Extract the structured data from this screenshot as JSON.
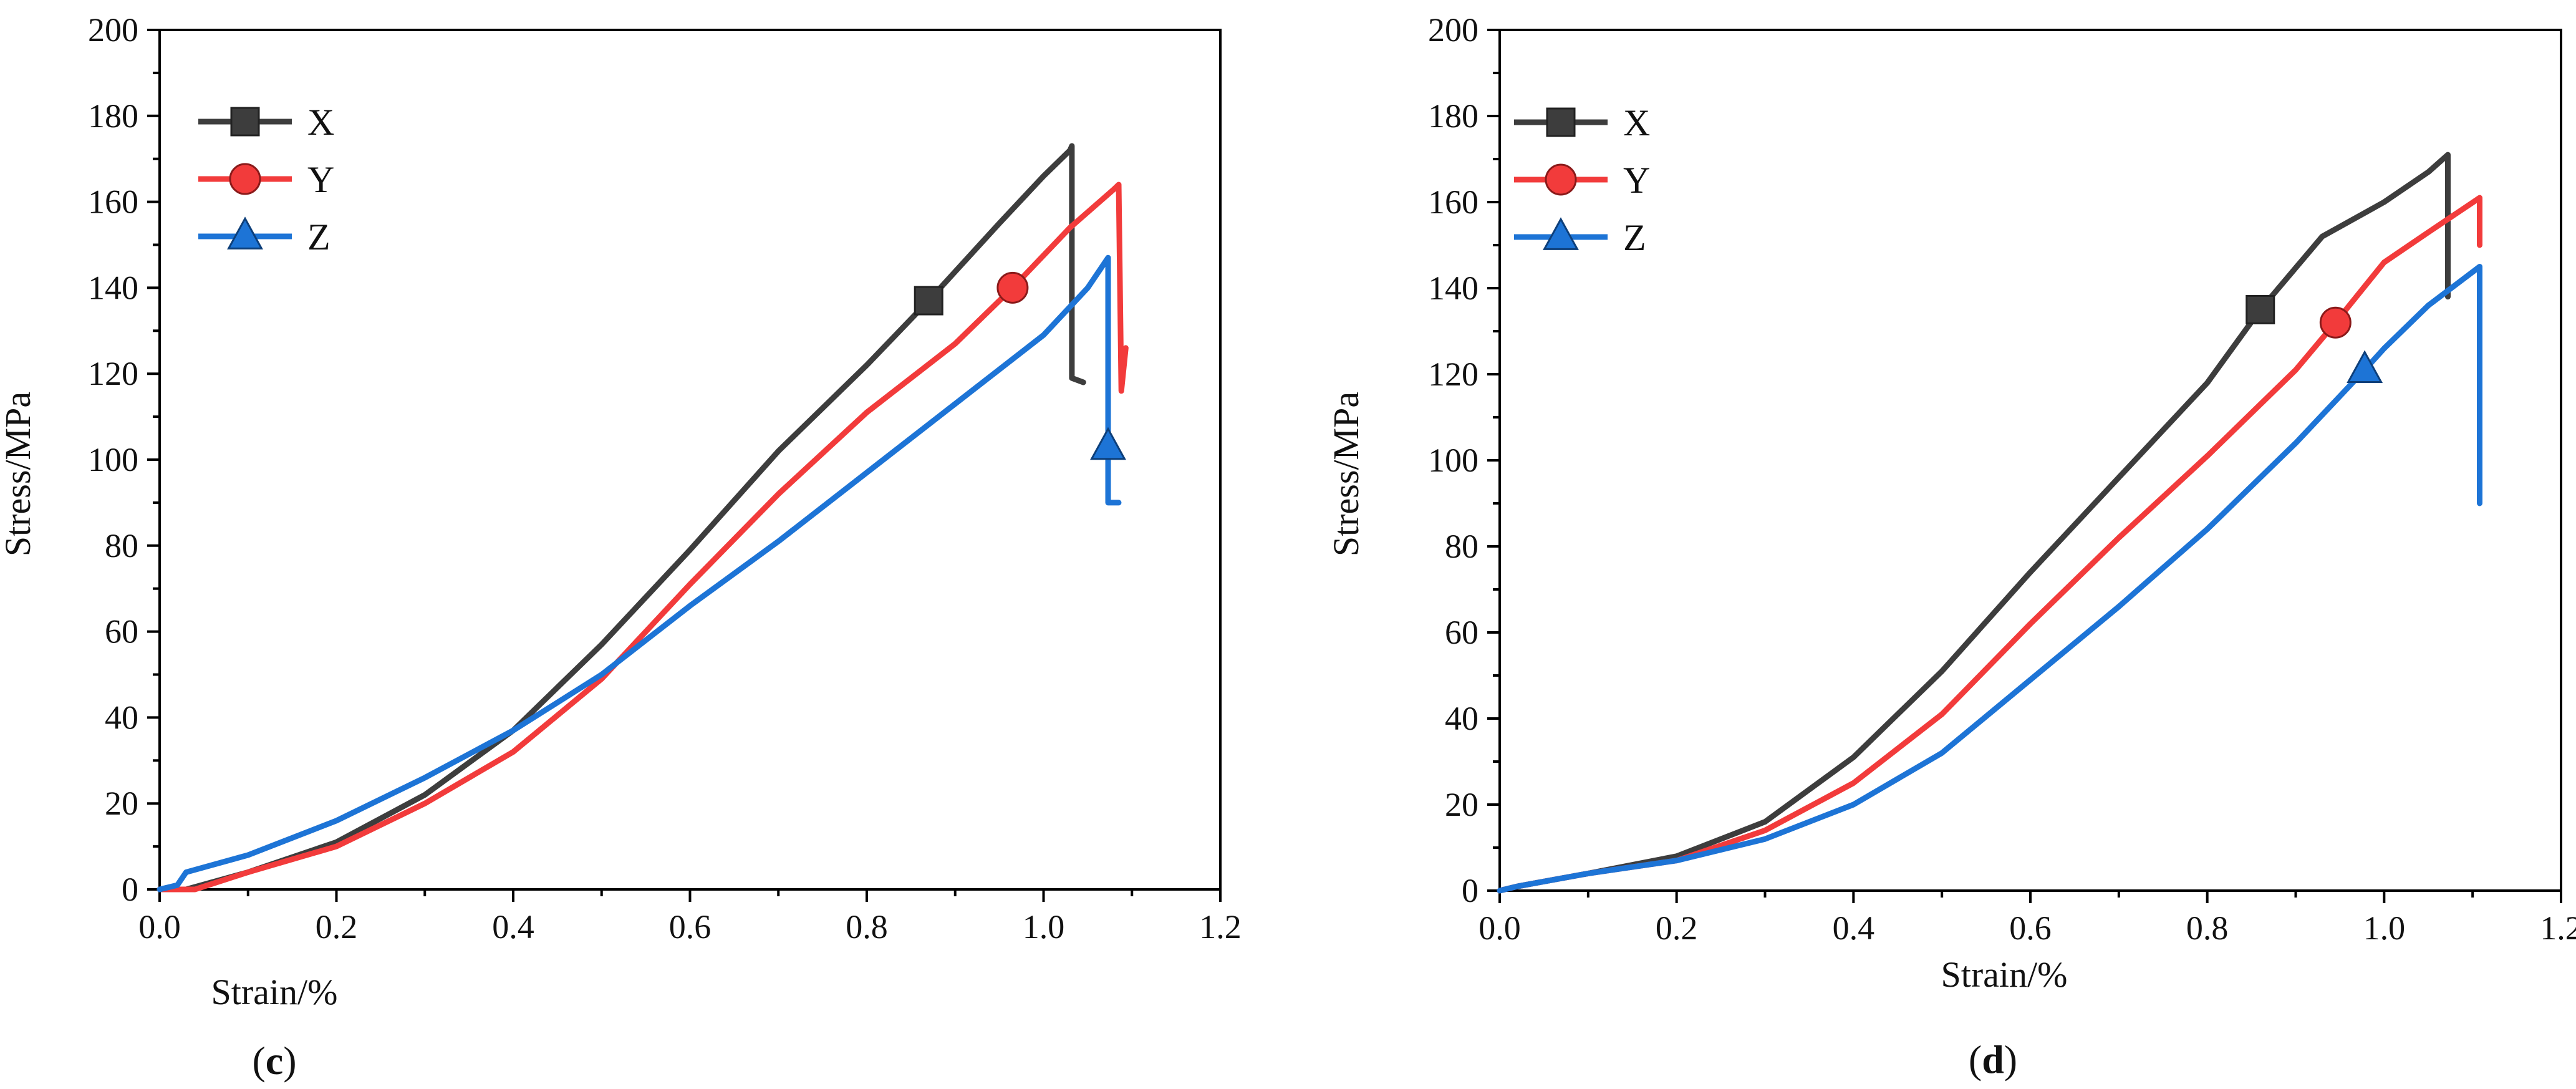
{
  "chart_data": [
    {
      "id": "c",
      "type": "line",
      "caption": {
        "open": "(",
        "letter": "c",
        "close": ")"
      },
      "xlabel": "Strain/%",
      "ylabel": "Stress/MPa",
      "xlim": [
        0.0,
        1.2
      ],
      "ylim": [
        0,
        200
      ],
      "xticks": [
        "0.0",
        "0.2",
        "0.4",
        "0.6",
        "0.8",
        "1.0",
        "1.2"
      ],
      "yticks": [
        "0",
        "20",
        "40",
        "60",
        "80",
        "100",
        "120",
        "140",
        "160",
        "180",
        "200"
      ],
      "legend": {
        "placement": "top-left"
      },
      "series": [
        {
          "name": "X",
          "color": "#3d3d3d",
          "marker": "square",
          "marker_point": [
            0.87,
            137
          ],
          "points": [
            [
              0.0,
              0
            ],
            [
              0.03,
              0
            ],
            [
              0.1,
              4
            ],
            [
              0.2,
              11
            ],
            [
              0.3,
              22
            ],
            [
              0.4,
              37
            ],
            [
              0.5,
              57
            ],
            [
              0.6,
              79
            ],
            [
              0.7,
              102
            ],
            [
              0.8,
              122
            ],
            [
              0.87,
              137
            ],
            [
              0.95,
              155
            ],
            [
              1.0,
              166
            ],
            [
              1.03,
              172
            ],
            [
              1.032,
              173
            ],
            [
              1.032,
              119
            ],
            [
              1.045,
              118
            ]
          ]
        },
        {
          "name": "Y",
          "color": "#f23b3b",
          "marker": "circle",
          "marker_point": [
            0.965,
            140
          ],
          "points": [
            [
              0.0,
              0
            ],
            [
              0.04,
              0
            ],
            [
              0.1,
              4
            ],
            [
              0.2,
              10
            ],
            [
              0.3,
              20
            ],
            [
              0.4,
              32
            ],
            [
              0.5,
              49
            ],
            [
              0.6,
              71
            ],
            [
              0.7,
              92
            ],
            [
              0.8,
              111
            ],
            [
              0.9,
              127
            ],
            [
              0.965,
              140
            ],
            [
              1.03,
              154
            ],
            [
              1.08,
              163
            ],
            [
              1.085,
              164
            ],
            [
              1.088,
              116
            ],
            [
              1.093,
              126
            ]
          ]
        },
        {
          "name": "Z",
          "color": "#1d74d6",
          "marker": "triangle",
          "marker_point": [
            1.073,
            103
          ],
          "points": [
            [
              0.0,
              0
            ],
            [
              0.02,
              1
            ],
            [
              0.03,
              4
            ],
            [
              0.1,
              8
            ],
            [
              0.2,
              16
            ],
            [
              0.3,
              26
            ],
            [
              0.4,
              37
            ],
            [
              0.5,
              50
            ],
            [
              0.6,
              66
            ],
            [
              0.7,
              81
            ],
            [
              0.8,
              97
            ],
            [
              0.9,
              113
            ],
            [
              1.0,
              129
            ],
            [
              1.05,
              140
            ],
            [
              1.073,
              147
            ],
            [
              1.073,
              90
            ],
            [
              1.085,
              90
            ]
          ]
        }
      ]
    },
    {
      "id": "d",
      "type": "line",
      "caption": {
        "open": "(",
        "letter": "d",
        "close": ")"
      },
      "xlabel": "Strain/%",
      "ylabel": "Stress/MPa",
      "xlim": [
        0.0,
        1.2
      ],
      "ylim": [
        0,
        200
      ],
      "xticks": [
        "0.0",
        "0.2",
        "0.4",
        "0.6",
        "0.8",
        "1.0",
        "1.2"
      ],
      "yticks": [
        "0",
        "20",
        "40",
        "60",
        "80",
        "100",
        "120",
        "140",
        "160",
        "180",
        "200"
      ],
      "legend": {
        "placement": "top-left"
      },
      "series": [
        {
          "name": "X",
          "color": "#3d3d3d",
          "marker": "square",
          "marker_point": [
            0.86,
            135
          ],
          "points": [
            [
              0.0,
              0
            ],
            [
              0.02,
              1
            ],
            [
              0.1,
              4
            ],
            [
              0.2,
              8
            ],
            [
              0.3,
              16
            ],
            [
              0.4,
              31
            ],
            [
              0.5,
              51
            ],
            [
              0.6,
              74
            ],
            [
              0.7,
              96
            ],
            [
              0.8,
              118
            ],
            [
              0.86,
              135
            ],
            [
              0.93,
              152
            ],
            [
              1.0,
              160
            ],
            [
              1.05,
              167
            ],
            [
              1.072,
              171
            ],
            [
              1.072,
              138
            ]
          ]
        },
        {
          "name": "Y",
          "color": "#f23b3b",
          "marker": "circle",
          "marker_point": [
            0.945,
            132
          ],
          "points": [
            [
              0.0,
              0
            ],
            [
              0.02,
              1
            ],
            [
              0.1,
              4
            ],
            [
              0.2,
              7
            ],
            [
              0.3,
              14
            ],
            [
              0.4,
              25
            ],
            [
              0.5,
              41
            ],
            [
              0.6,
              62
            ],
            [
              0.7,
              82
            ],
            [
              0.8,
              101
            ],
            [
              0.9,
              121
            ],
            [
              0.945,
              132
            ],
            [
              1.0,
              146
            ],
            [
              1.05,
              153
            ],
            [
              1.108,
              161
            ],
            [
              1.108,
              150
            ]
          ]
        },
        {
          "name": "Z",
          "color": "#1d74d6",
          "marker": "triangle",
          "marker_point": [
            0.978,
            121
          ],
          "points": [
            [
              0.0,
              0
            ],
            [
              0.02,
              1
            ],
            [
              0.1,
              4
            ],
            [
              0.2,
              7
            ],
            [
              0.3,
              12
            ],
            [
              0.4,
              20
            ],
            [
              0.5,
              32
            ],
            [
              0.6,
              49
            ],
            [
              0.7,
              66
            ],
            [
              0.8,
              84
            ],
            [
              0.9,
              104
            ],
            [
              0.978,
              121
            ],
            [
              1.0,
              126
            ],
            [
              1.05,
              136
            ],
            [
              1.108,
              145
            ],
            [
              1.108,
              90
            ]
          ]
        }
      ]
    }
  ]
}
